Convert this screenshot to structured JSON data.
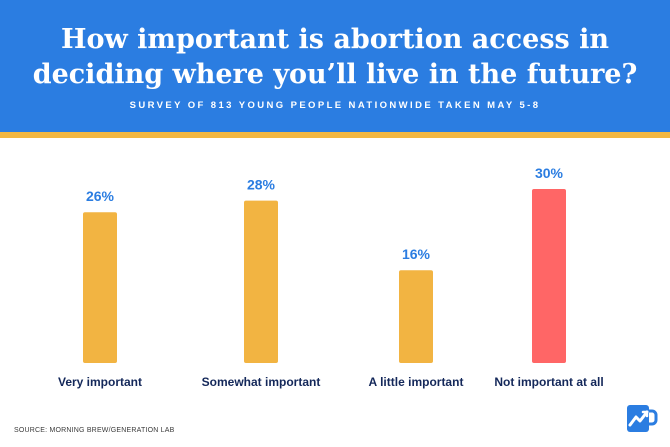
{
  "header": {
    "title": "How important is abortion access in deciding where you’ll live in the future?",
    "subtitle": "SURVEY OF 813 YOUNG PEOPLE NATIONWIDE TAKEN MAY 5-8"
  },
  "chart_data": {
    "type": "bar",
    "title": "How important is abortion access in deciding where you’ll live in the future?",
    "subtitle": "SURVEY OF 813 YOUNG PEOPLE NATIONWIDE TAKEN MAY 5-8",
    "categories": [
      "Very important",
      "Somewhat important",
      "A little important",
      "Not important at all"
    ],
    "values": [
      26,
      28,
      16,
      30
    ],
    "value_labels": [
      "26%",
      "28%",
      "16%",
      "30%"
    ],
    "bar_colors": [
      "#f2b442",
      "#f2b442",
      "#f2b442",
      "#ff6666"
    ],
    "label_color": "#2b7de1",
    "unit": "%",
    "ylim": [
      0,
      30
    ],
    "grid": false,
    "legend": "none",
    "xlabel": "",
    "ylabel": ""
  },
  "colors": {
    "header_bg": "#2b7de1",
    "stripe": "#f2b742",
    "category_text": "#14285a"
  },
  "footer": {
    "source": "SOURCE: MORNING BREW/GENERATION LAB",
    "logo_icon": "morning-brew-mug-icon"
  }
}
